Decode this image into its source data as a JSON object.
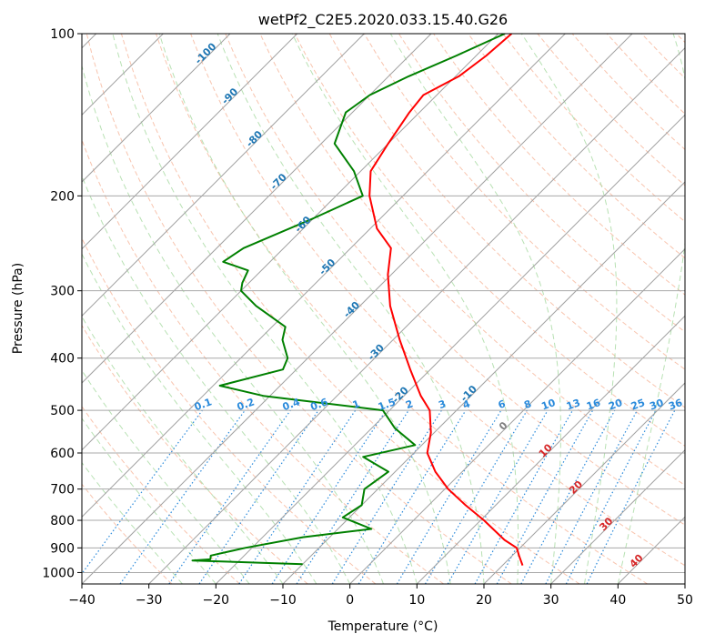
{
  "chart_data": {
    "type": "line",
    "title": "wetPf2_C2E5.2020.033.15.40.G26",
    "xlabel": "Temperature (°C)",
    "ylabel": "Pressure (hPa)",
    "xlim": [
      -40,
      50
    ],
    "ylim": [
      1050,
      100
    ],
    "x_ticks": [
      -40,
      -30,
      -20,
      -10,
      0,
      10,
      20,
      30,
      40,
      50
    ],
    "y_ticks": [
      100,
      200,
      300,
      400,
      500,
      600,
      700,
      800,
      900,
      1000
    ],
    "series": [
      {
        "name": "temperature",
        "color": "#ff0000",
        "points": [
          [
            -58.0,
            100
          ],
          [
            -58.5,
            110
          ],
          [
            -59.5,
            120
          ],
          [
            -62.0,
            130
          ],
          [
            -61.5,
            140
          ],
          [
            -60.0,
            160
          ],
          [
            -58.5,
            180
          ],
          [
            -55.0,
            200
          ],
          [
            -49.0,
            230
          ],
          [
            -44.0,
            250
          ],
          [
            -40.5,
            280
          ],
          [
            -35.5,
            320
          ],
          [
            -29.0,
            370
          ],
          [
            -23.0,
            420
          ],
          [
            -17.5,
            470
          ],
          [
            -14.0,
            500
          ],
          [
            -10.5,
            550
          ],
          [
            -8.0,
            600
          ],
          [
            -4.0,
            650
          ],
          [
            0.5,
            700
          ],
          [
            5.5,
            750
          ],
          [
            10.5,
            800
          ],
          [
            14.0,
            840
          ],
          [
            16.5,
            870
          ],
          [
            19.5,
            900
          ],
          [
            21.0,
            930
          ],
          [
            22.0,
            950
          ],
          [
            23.0,
            970
          ]
        ]
      },
      {
        "name": "dewpoint",
        "color": "#008000",
        "points": [
          [
            -59.0,
            100
          ],
          [
            -63.0,
            110
          ],
          [
            -67.0,
            120
          ],
          [
            -70.0,
            130
          ],
          [
            -71.0,
            140
          ],
          [
            -68.0,
            160
          ],
          [
            -61.0,
            180
          ],
          [
            -56.0,
            200
          ],
          [
            -60.0,
            220
          ],
          [
            -66.0,
            250
          ],
          [
            -67.0,
            265
          ],
          [
            -62.0,
            275
          ],
          [
            -61.0,
            290
          ],
          [
            -60.0,
            300
          ],
          [
            -55.5,
            320
          ],
          [
            -48.0,
            350
          ],
          [
            -46.5,
            370
          ],
          [
            -43.0,
            400
          ],
          [
            -42.0,
            420
          ],
          [
            -49.0,
            450
          ],
          [
            -41.0,
            470
          ],
          [
            -21.0,
            500
          ],
          [
            -16.5,
            540
          ],
          [
            -11.0,
            580
          ],
          [
            -17.0,
            610
          ],
          [
            -11.0,
            650
          ],
          [
            -12.0,
            700
          ],
          [
            -10.0,
            750
          ],
          [
            -11.0,
            790
          ],
          [
            -5.0,
            830
          ],
          [
            -14.0,
            860
          ],
          [
            -21.0,
            900
          ],
          [
            -25.0,
            930
          ],
          [
            -24.5,
            945
          ],
          [
            -27.0,
            950
          ],
          [
            -10.0,
            965
          ]
        ]
      }
    ],
    "isotherm_labels": [
      "-100",
      "-90",
      "-80",
      "-70",
      "-60",
      "-50",
      "-40",
      "-30",
      "-20",
      "-10",
      "0",
      "10",
      "20",
      "30",
      "40"
    ],
    "mixing_ratio_labels": [
      "0.1",
      "0.2",
      "0.4",
      "0.6",
      "1",
      "1.5",
      "2",
      "3",
      "4",
      "6",
      "8",
      "10",
      "13",
      "16",
      "20",
      "25",
      "30",
      "36"
    ],
    "grid": true
  }
}
